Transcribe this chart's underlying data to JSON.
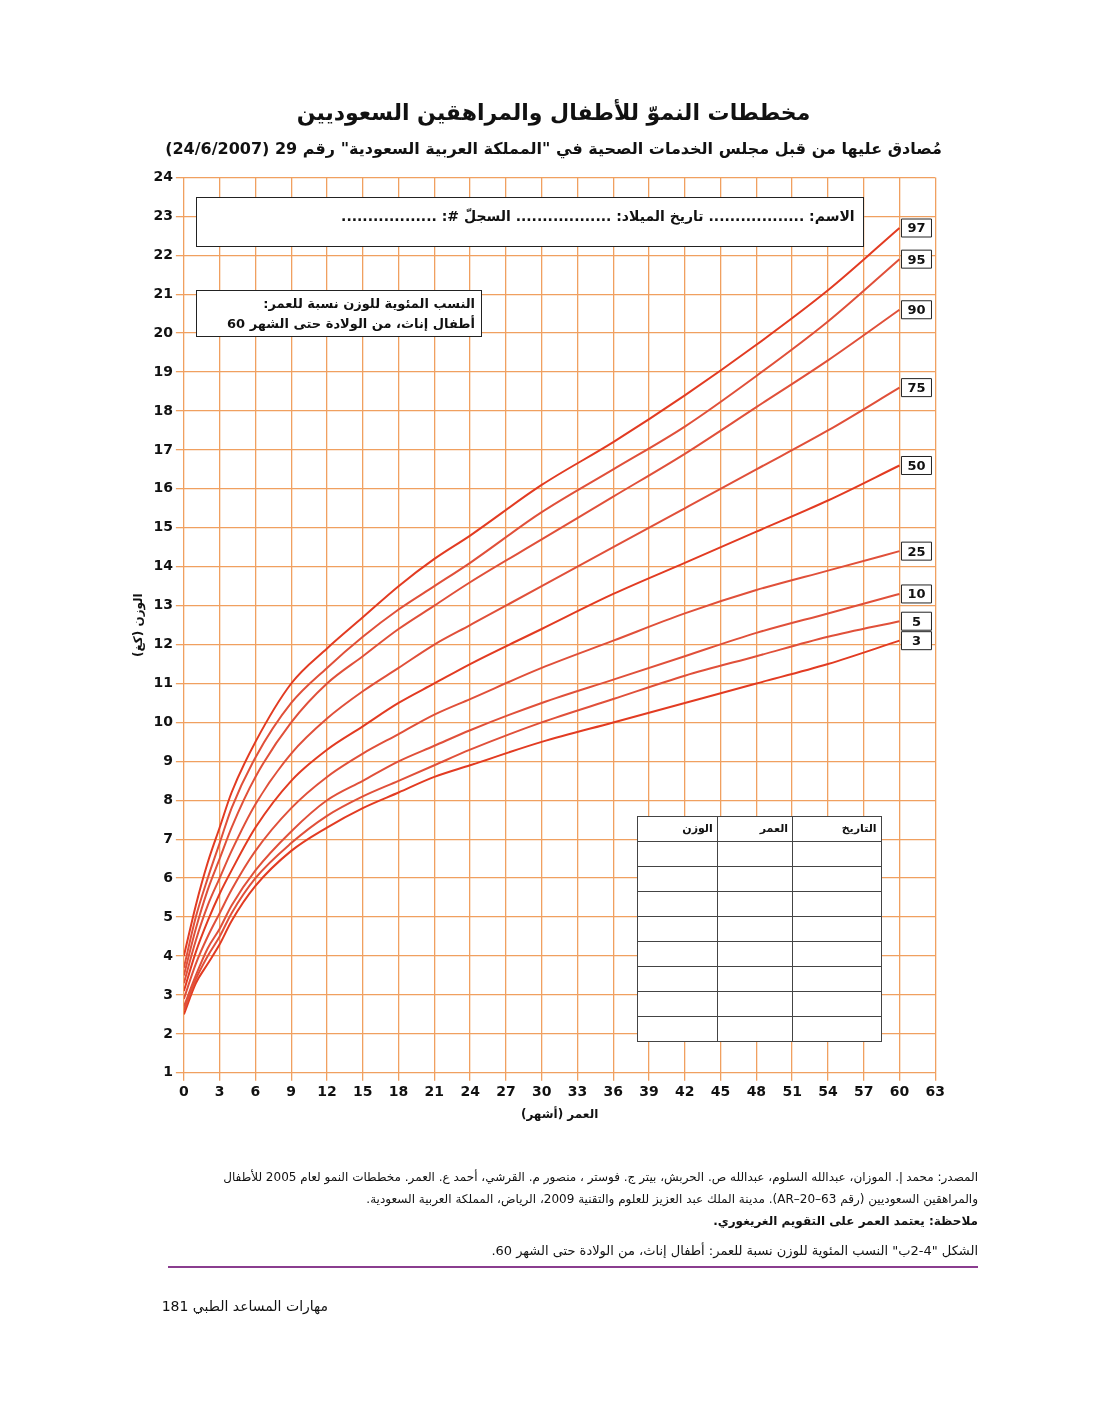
{
  "chart_data": {
    "type": "line",
    "title": "مخططات النموّ للأطفال والمراهقين السعوديين",
    "subtitle": "مُصادق عليها من قبل مجلس الخدمات الصحية في \"المملكة العربية السعودية\" رقم 29 (24/6/2007)",
    "xlabel": "العمر (أشهر)",
    "ylabel": "الوزن (كغ)",
    "x": [
      0,
      1,
      2,
      3,
      4,
      6,
      9,
      12,
      15,
      18,
      21,
      24,
      30,
      36,
      42,
      48,
      54,
      60
    ],
    "series": [
      {
        "name": "97",
        "color": "#e23b22",
        "values": [
          4.0,
          5.3,
          6.4,
          7.3,
          8.2,
          9.5,
          11.0,
          11.9,
          12.7,
          13.5,
          14.2,
          14.8,
          16.1,
          17.2,
          18.4,
          19.7,
          21.1,
          22.7
        ]
      },
      {
        "name": "95",
        "color": "#e0503a",
        "values": [
          3.7,
          5.0,
          6.0,
          6.9,
          7.8,
          9.1,
          10.5,
          11.4,
          12.2,
          12.9,
          13.5,
          14.1,
          15.4,
          16.5,
          17.6,
          18.9,
          20.3,
          21.9
        ]
      },
      {
        "name": "90",
        "color": "#e0503a",
        "values": [
          3.5,
          4.7,
          5.7,
          6.5,
          7.3,
          8.6,
          10.0,
          11.0,
          11.7,
          12.4,
          13.0,
          13.6,
          14.7,
          15.8,
          16.9,
          18.1,
          19.3,
          20.6
        ]
      },
      {
        "name": "75",
        "color": "#e0503a",
        "values": [
          3.3,
          4.4,
          5.3,
          6.0,
          6.7,
          7.9,
          9.2,
          10.1,
          10.8,
          11.4,
          12.0,
          12.5,
          13.5,
          14.5,
          15.5,
          16.5,
          17.5,
          18.6
        ]
      },
      {
        "name": "50",
        "color": "#e23b22",
        "values": [
          3.1,
          4.1,
          4.9,
          5.6,
          6.2,
          7.3,
          8.5,
          9.3,
          9.9,
          10.5,
          11.0,
          11.5,
          12.4,
          13.3,
          14.1,
          14.9,
          15.7,
          16.6
        ]
      },
      {
        "name": "25",
        "color": "#e0503a",
        "values": [
          2.9,
          3.8,
          4.5,
          5.1,
          5.7,
          6.7,
          7.8,
          8.6,
          9.2,
          9.7,
          10.2,
          10.6,
          11.4,
          12.1,
          12.8,
          13.4,
          13.9,
          14.4
        ]
      },
      {
        "name": "10",
        "color": "#e0503a",
        "values": [
          2.7,
          3.5,
          4.2,
          4.7,
          5.3,
          6.2,
          7.2,
          8.0,
          8.5,
          9.0,
          9.4,
          9.8,
          10.5,
          11.1,
          11.7,
          12.3,
          12.8,
          13.3
        ]
      },
      {
        "name": "5",
        "color": "#e0503a",
        "values": [
          2.6,
          3.4,
          4.0,
          4.5,
          5.1,
          6.0,
          6.9,
          7.6,
          8.1,
          8.5,
          8.9,
          9.3,
          10.0,
          10.6,
          11.2,
          11.7,
          12.2,
          12.6
        ]
      },
      {
        "name": "3",
        "color": "#e23b22",
        "values": [
          2.5,
          3.3,
          3.8,
          4.3,
          4.9,
          5.8,
          6.7,
          7.3,
          7.8,
          8.2,
          8.6,
          8.9,
          9.5,
          10.0,
          10.5,
          11.0,
          11.5,
          12.1
        ]
      }
    ],
    "xlim": [
      0,
      63
    ],
    "xticks": [
      0,
      3,
      6,
      9,
      12,
      15,
      18,
      21,
      24,
      27,
      30,
      33,
      36,
      39,
      42,
      45,
      48,
      51,
      54,
      57,
      60,
      63
    ],
    "ylim": [
      1,
      24
    ],
    "yticks": [
      1,
      2,
      3,
      4,
      5,
      6,
      7,
      8,
      9,
      10,
      11,
      12,
      13,
      14,
      15,
      16,
      17,
      18,
      19,
      20,
      21,
      22,
      23,
      24
    ],
    "grid": true,
    "legend": false,
    "marker": "none",
    "line_style": "solid",
    "annotations": [
      "الاسم: .................. تاريخ الميلاد: .................. السجلّ #: ..................",
      "النسب المئوية للوزن نسبة للعمر:",
      "أطفال إناث، من الولادة حتى الشهر 60",
      "التاريخ",
      "العمر",
      "الوزن",
      "المصدر: محمد إ. الموزان، عبدالله السلوم، عبدالله ص. الحربش، بيتر ج. فوستر ، منصور م. القرشي، أحمد ع. العمر. مخططات النمو لعام 2005 للأطفال والمراهقين السعوديين (رقم AR–20–63). مدينة الملك عبد العزيز للعلوم والتقنية 2009، الرياض، المملكة العربية السعودية.",
      "ملاحظة: يعتمد العمر على التقويم الغريغوري.",
      "الشكل \"4-2ب\" النسب المئوية للوزن نسبة للعمر: أطفال إناث، من الولادة حتى الشهر 60.",
      "مهارات المساعد الطبي 181"
    ]
  }
}
